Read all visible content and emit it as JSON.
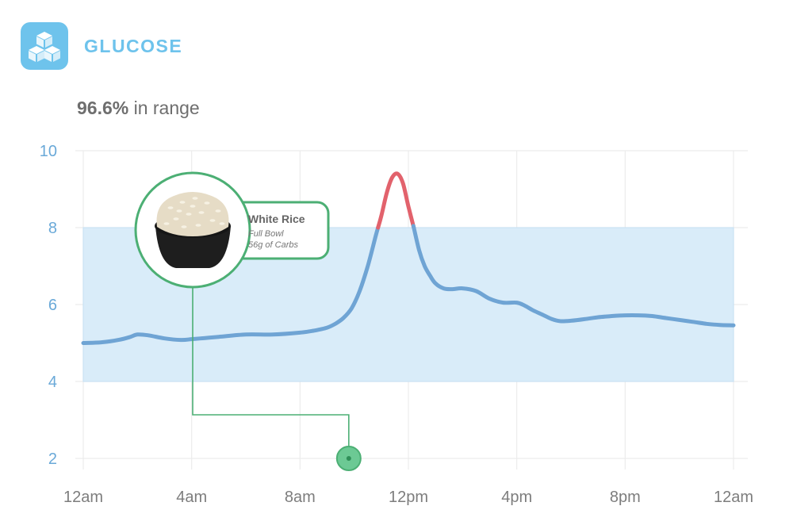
{
  "header": {
    "title": "GLUCOSE",
    "icon": "sugar-cubes-icon",
    "in_range_pct": "96.6%",
    "in_range_text": " in range"
  },
  "colors": {
    "accent": "#6ec3ec",
    "line": "#6fa4d4",
    "high": "#e2626c",
    "target_band": "#d9ecf9",
    "event": "#4caf74"
  },
  "meal": {
    "name": "White Rice",
    "detail1": "Full Bowl",
    "detail2": "56g of Carbs",
    "icon": "rice-bowl-icon",
    "time_hours": 9.8
  },
  "chart_data": {
    "type": "line",
    "title": "",
    "xlabel": "",
    "ylabel": "",
    "x_ticks": [
      "12am",
      "4am",
      "8am",
      "12pm",
      "4pm",
      "8pm",
      "12am"
    ],
    "x_tick_hours": [
      0,
      4,
      8,
      12,
      16,
      20,
      24
    ],
    "y_ticks": [
      2,
      4,
      6,
      8,
      10
    ],
    "ylim": [
      2,
      10
    ],
    "xlim": [
      0,
      24
    ],
    "target_range": [
      4,
      8
    ],
    "grid": true,
    "series": [
      {
        "x": [
          0,
          0.7,
          1.3,
          1.7,
          2,
          2.4,
          3,
          3.6,
          4,
          4.5,
          5,
          6,
          7,
          8,
          8.5,
          9,
          9.3,
          9.6,
          9.9,
          10.2,
          10.5,
          10.8,
          11,
          11.2,
          11.4,
          11.6,
          11.8,
          12,
          12.2,
          12.4,
          12.6,
          12.8,
          13,
          13.3,
          13.6,
          14,
          14.5,
          15,
          15.5,
          16,
          16.3,
          16.6,
          17,
          17.3,
          17.6,
          18,
          18.5,
          19,
          19.5,
          20,
          20.5,
          21,
          21.5,
          22,
          22.5,
          23,
          23.5,
          24
        ],
        "y": [
          5.0,
          5.02,
          5.08,
          5.15,
          5.22,
          5.2,
          5.12,
          5.08,
          5.1,
          5.13,
          5.16,
          5.22,
          5.22,
          5.27,
          5.32,
          5.4,
          5.5,
          5.65,
          5.9,
          6.35,
          7.0,
          7.8,
          8.3,
          8.9,
          9.3,
          9.4,
          9.15,
          8.55,
          8.0,
          7.4,
          7.0,
          6.75,
          6.55,
          6.42,
          6.4,
          6.42,
          6.35,
          6.15,
          6.05,
          6.05,
          5.97,
          5.85,
          5.72,
          5.62,
          5.57,
          5.58,
          5.62,
          5.67,
          5.7,
          5.72,
          5.72,
          5.7,
          5.65,
          5.6,
          5.55,
          5.5,
          5.47,
          5.46
        ]
      }
    ]
  }
}
